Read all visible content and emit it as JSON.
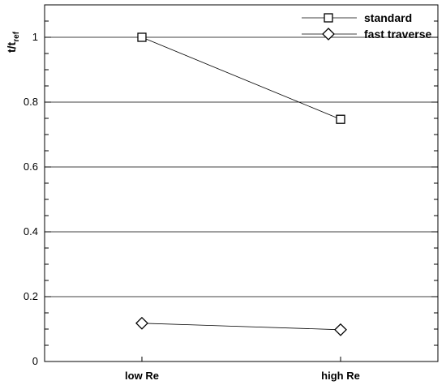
{
  "chart_data": {
    "type": "line",
    "categories": [
      "low Re",
      "high Re"
    ],
    "series": [
      {
        "name": "standard",
        "marker": "square",
        "values": [
          1.0,
          0.747
        ]
      },
      {
        "name": "fast traverse",
        "marker": "diamond",
        "values": [
          0.118,
          0.098
        ]
      }
    ],
    "ylabel": {
      "main": "t/t",
      "sub": "ref"
    },
    "ylim": [
      0,
      1.1
    ],
    "yticks": [
      0,
      0.2,
      0.4,
      0.6,
      0.8,
      1
    ],
    "ytick_labels": [
      "0",
      "0.2",
      "0.4",
      "0.6",
      "0.8",
      "1"
    ],
    "grid": "horizontal",
    "legend_position": "top-right",
    "line_color": "#000000",
    "marker_fill": "#ffffff"
  }
}
